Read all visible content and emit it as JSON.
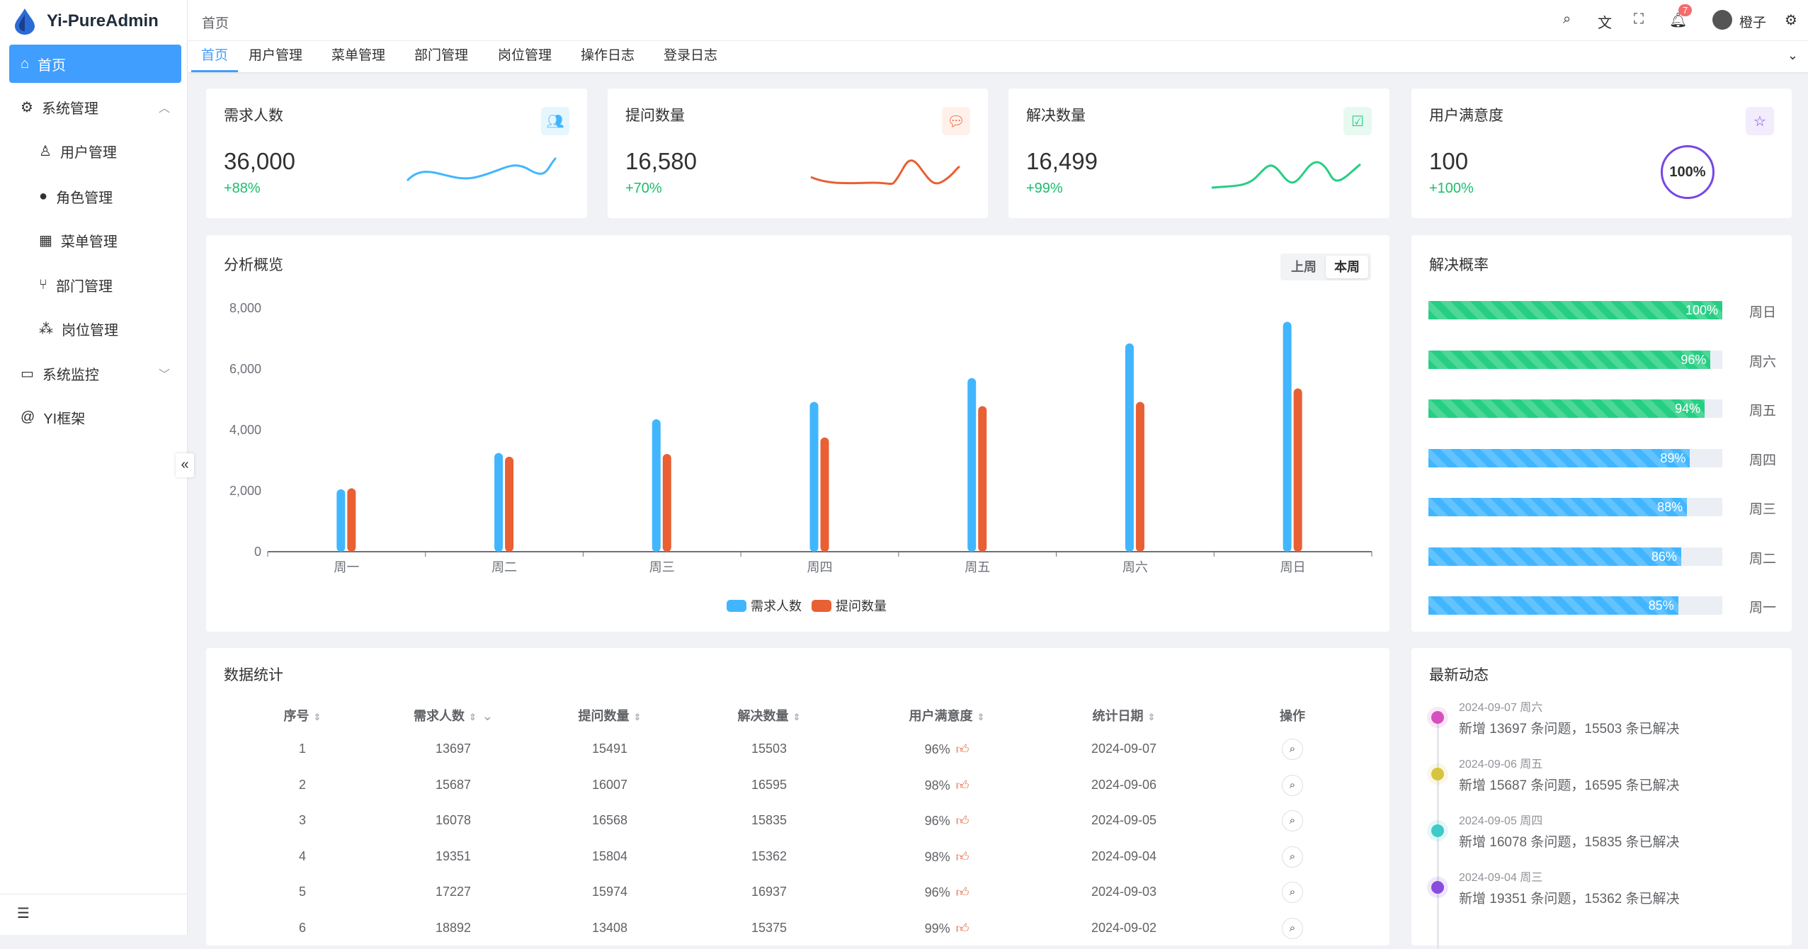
{
  "app": {
    "title": "Yi-PureAdmin"
  },
  "sidebar": {
    "items": [
      {
        "label": "首页",
        "icon": "home-icon"
      },
      {
        "label": "系统管理",
        "icon": "gear-icon"
      },
      {
        "label": "用户管理",
        "icon": "user-icon"
      },
      {
        "label": "角色管理",
        "icon": "role-icon"
      },
      {
        "label": "菜单管理",
        "icon": "grid-icon"
      },
      {
        "label": "部门管理",
        "icon": "branch-icon"
      },
      {
        "label": "岗位管理",
        "icon": "org-icon"
      },
      {
        "label": "系统监控",
        "icon": "monitor-icon"
      },
      {
        "label": "YI框架",
        "icon": "at-icon"
      }
    ]
  },
  "header": {
    "breadcrumb": "首页",
    "badge": "7",
    "user": "橙子"
  },
  "tabs": [
    "首页",
    "用户管理",
    "菜单管理",
    "部门管理",
    "岗位管理",
    "操作日志",
    "登录日志"
  ],
  "stats": [
    {
      "title": "需求人数",
      "value": "36,000",
      "change": "+88%",
      "color": "#41b6ff"
    },
    {
      "title": "提问数量",
      "value": "16,580",
      "change": "+70%",
      "color": "#e85f33"
    },
    {
      "title": "解决数量",
      "value": "16,499",
      "change": "+99%",
      "color": "#26ce83"
    },
    {
      "title": "用户满意度",
      "value": "100",
      "change": "+100%",
      "color": "#7846e5",
      "gauge": "100%"
    }
  ],
  "overview": {
    "title": "分析概览",
    "toggle": [
      "上周",
      "本周"
    ],
    "selected": "本周"
  },
  "chart_data": {
    "type": "bar",
    "categories": [
      "周一",
      "周二",
      "周三",
      "周四",
      "周五",
      "周六",
      "周日"
    ],
    "series": [
      {
        "name": "需求人数",
        "color": "#41b6ff",
        "values": [
          2050,
          3240,
          4350,
          4920,
          5700,
          6840,
          7550
        ]
      },
      {
        "name": "提问数量",
        "color": "#e86033",
        "values": [
          2080,
          3120,
          3210,
          3750,
          4780,
          4920,
          5360
        ]
      }
    ],
    "yticks": [
      "0",
      "2,000",
      "4,000",
      "6,000",
      "8,000"
    ],
    "ylim": [
      0,
      8000
    ],
    "legend": "bottom"
  },
  "rates": {
    "title": "解决概率",
    "items": [
      {
        "day": "周日",
        "pct": 100,
        "label": "100%",
        "color": "#26ce83"
      },
      {
        "day": "周六",
        "pct": 96,
        "label": "96%",
        "color": "#26ce83"
      },
      {
        "day": "周五",
        "pct": 94,
        "label": "94%",
        "color": "#26ce83"
      },
      {
        "day": "周四",
        "pct": 89,
        "label": "89%",
        "color": "#41b6ff"
      },
      {
        "day": "周三",
        "pct": 88,
        "label": "88%",
        "color": "#41b6ff"
      },
      {
        "day": "周二",
        "pct": 86,
        "label": "86%",
        "color": "#41b6ff"
      },
      {
        "day": "周一",
        "pct": 85,
        "label": "85%",
        "color": "#41b6ff"
      }
    ]
  },
  "table": {
    "title": "数据统计",
    "headers": [
      "序号",
      "需求人数",
      "提问数量",
      "解决数量",
      "用户满意度",
      "统计日期",
      "操作"
    ],
    "rows": [
      [
        "1",
        "13697",
        "15491",
        "15503",
        "96%",
        "2024-09-07"
      ],
      [
        "2",
        "15687",
        "16007",
        "16595",
        "98%",
        "2024-09-06"
      ],
      [
        "3",
        "16078",
        "16568",
        "15835",
        "96%",
        "2024-09-05"
      ],
      [
        "4",
        "19351",
        "15804",
        "15362",
        "98%",
        "2024-09-04"
      ],
      [
        "5",
        "17227",
        "15974",
        "16937",
        "96%",
        "2024-09-03"
      ],
      [
        "6",
        "18892",
        "13408",
        "15375",
        "99%",
        "2024-09-02"
      ]
    ]
  },
  "timeline": {
    "title": "最新动态",
    "items": [
      {
        "date": "2024-09-07 周六",
        "text": "新增 13697 条问题，15503 条已解决",
        "color": "#d64fbf"
      },
      {
        "date": "2024-09-06 周五",
        "text": "新增 15687 条问题，16595 条已解决",
        "color": "#d6c43f"
      },
      {
        "date": "2024-09-05 周四",
        "text": "新增 16078 条问题，15835 条已解决",
        "color": "#3fc9c9"
      },
      {
        "date": "2024-09-04 周三",
        "text": "新增 19351 条问题，15362 条已解决",
        "color": "#8a4be0"
      }
    ]
  }
}
